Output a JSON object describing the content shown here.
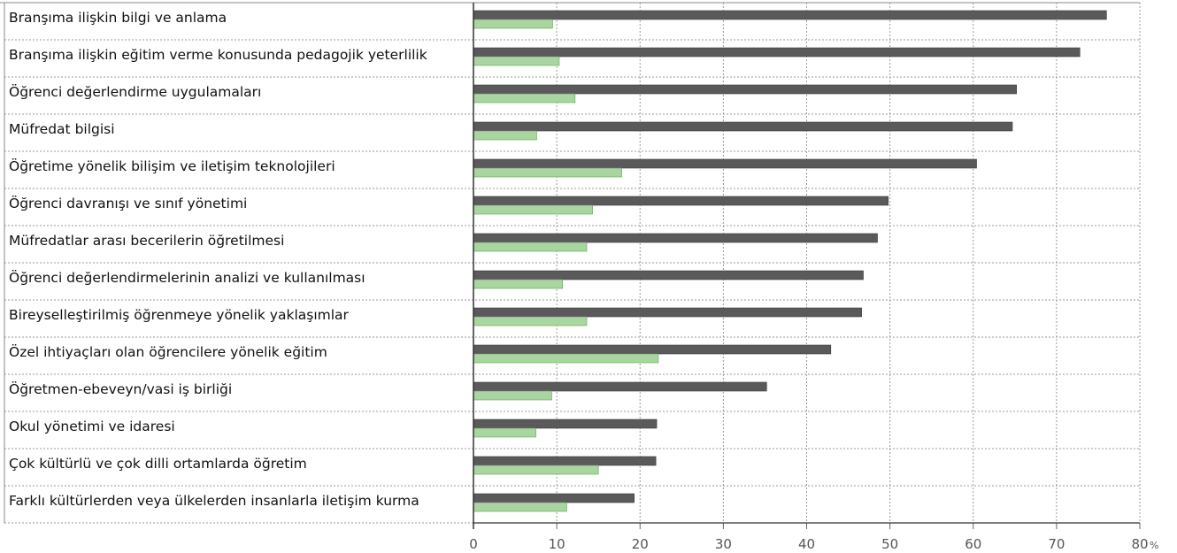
{
  "chart_data": {
    "type": "bar",
    "orientation": "horizontal",
    "categories": [
      "Branşıma ilişkin bilgi ve anlama",
      "Branşıma ilişkin eğitim verme konusunda pedagojik yeterlilik",
      "Öğrenci değerlendirme uygulamaları",
      "Müfredat bilgisi",
      "Öğretime yönelik bilişim ve iletişim teknolojileri",
      "Öğrenci davranışı ve sınıf yönetimi",
      "Müfredatlar arası becerilerin öğretilmesi",
      "Öğrenci değerlendirmelerinin analizi ve kullanılması",
      "Bireyselleştirilmiş öğrenmeye yönelik yaklaşımlar",
      "Özel ihtiyaçları olan öğrencilere yönelik eğitim",
      "Öğretmen-ebeveyn/vasi iş birliği",
      "Okul yönetimi ve idaresi",
      "Çok kültürlü ve çok dilli ortamlarda öğretim",
      "Farklı kültürlerden veya ülkelerden insanlarla iletişim kurma"
    ],
    "series": [
      {
        "color": "#5a5a5a",
        "values": [
          76,
          72.8,
          65.2,
          64.7,
          60.4,
          49.8,
          48.5,
          46.8,
          46.6,
          42.9,
          35.2,
          22.0,
          21.9,
          19.3
        ]
      },
      {
        "color": "#a9d5a0",
        "values": [
          9.5,
          10.3,
          12.2,
          7.6,
          17.8,
          14.3,
          13.6,
          10.7,
          13.6,
          22.2,
          9.4,
          7.5,
          15.0,
          11.2
        ]
      }
    ],
    "xlim": [
      0,
      80
    ],
    "ticks": [
      "0",
      "10",
      "20",
      "30",
      "40",
      "50",
      "60",
      "70",
      "80"
    ],
    "unit": "%",
    "grid": true
  }
}
